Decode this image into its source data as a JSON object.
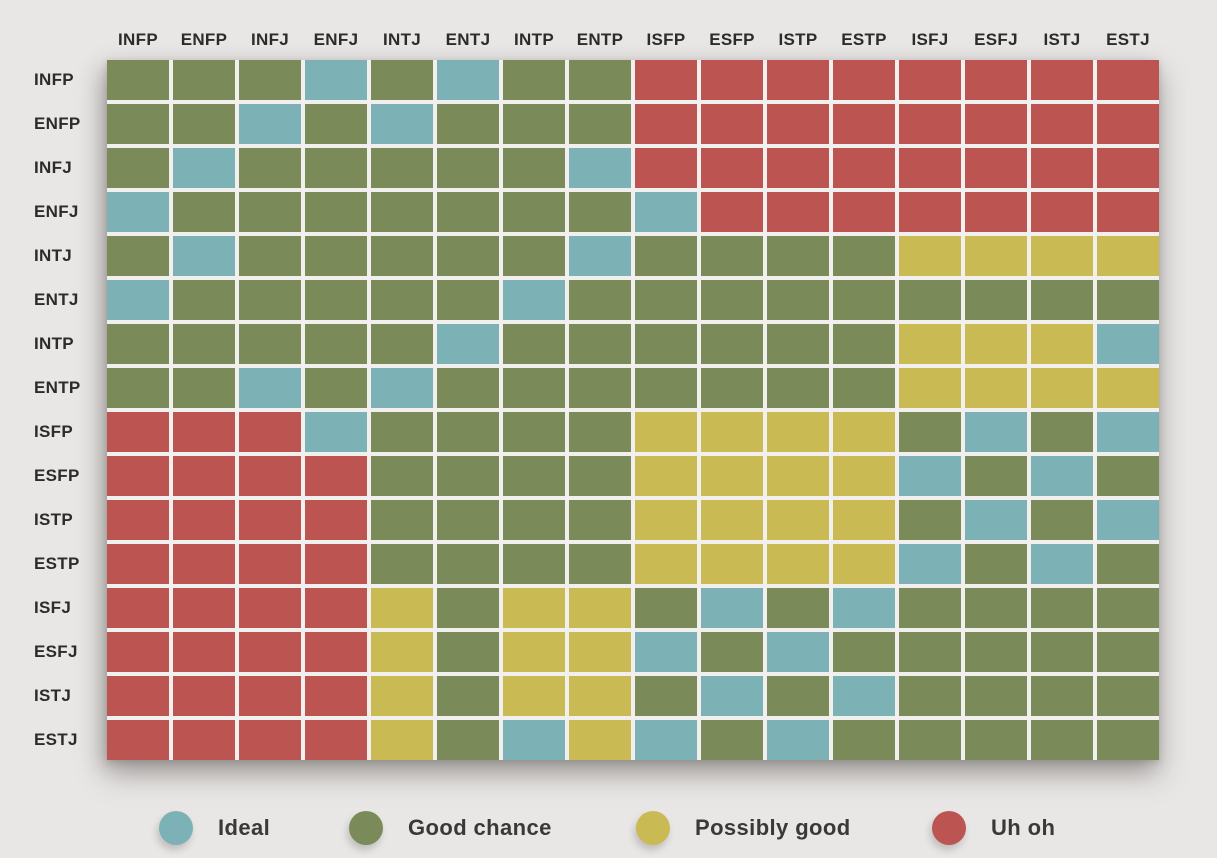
{
  "chart_data": {
    "type": "heatmap",
    "title": "",
    "columns": [
      "INFP",
      "ENFP",
      "INFJ",
      "ENFJ",
      "INTJ",
      "ENTJ",
      "INTP",
      "ENTP",
      "ISFP",
      "ESFP",
      "ISTP",
      "ESTP",
      "ISFJ",
      "ESFJ",
      "ISTJ",
      "ESTJ"
    ],
    "rows": [
      "INFP",
      "ENFP",
      "INFJ",
      "ENFJ",
      "INTJ",
      "ENTJ",
      "INTP",
      "ENTP",
      "ISFP",
      "ESFP",
      "ISTP",
      "ESTP",
      "ISFJ",
      "ESFJ",
      "ISTJ",
      "ESTJ"
    ],
    "cell_codes": {
      "T": {
        "label": "Ideal",
        "color": "#7cb1b6"
      },
      "G": {
        "label": "Good chance",
        "color": "#7a8b59"
      },
      "Y": {
        "label": "Possibly good",
        "color": "#c9ba54"
      },
      "R": {
        "label": "Uh oh",
        "color": "#bc5451"
      }
    },
    "matrix": [
      "GGGTGTGGRRRRRRRR",
      "GGTGTGGGRRRRRRRR",
      "GTGGGGGTRRRRRRRR",
      "TGGGGGGGTRRRRRRR",
      "GTGGGGGTGGGGYYYY",
      "TGGGGGTGGGGGGGGG",
      "GGGGGTGGGGGGYYYT",
      "GGTGTGGGGGGGYYYY",
      "RRRTGGGGYYYYGTGT",
      "RRRRGGGGYYYYTGTG",
      "RRRRGGGGYYYYGTGT",
      "RRRRGGGGYYYYTGTG",
      "RRRRYGYYGTGTGGGG",
      "RRRRYGYYTGTGGGGG",
      "RRRRYGYYGTGTGGGG",
      "RRRRYGTYTGTGGGGG"
    ],
    "legend_position": "bottom",
    "grid": true
  },
  "legend": {
    "items": [
      {
        "label": "Ideal",
        "color": "#7cb1b6"
      },
      {
        "label": "Good chance",
        "color": "#7a8b59"
      },
      {
        "label": "Possibly good",
        "color": "#c9ba54"
      },
      {
        "label": "Uh oh",
        "color": "#bc5451"
      }
    ]
  },
  "colors": {
    "background": "#e9e7e6",
    "grid_lines": "#f2f0ee",
    "label_text": "#2d2c2a"
  }
}
